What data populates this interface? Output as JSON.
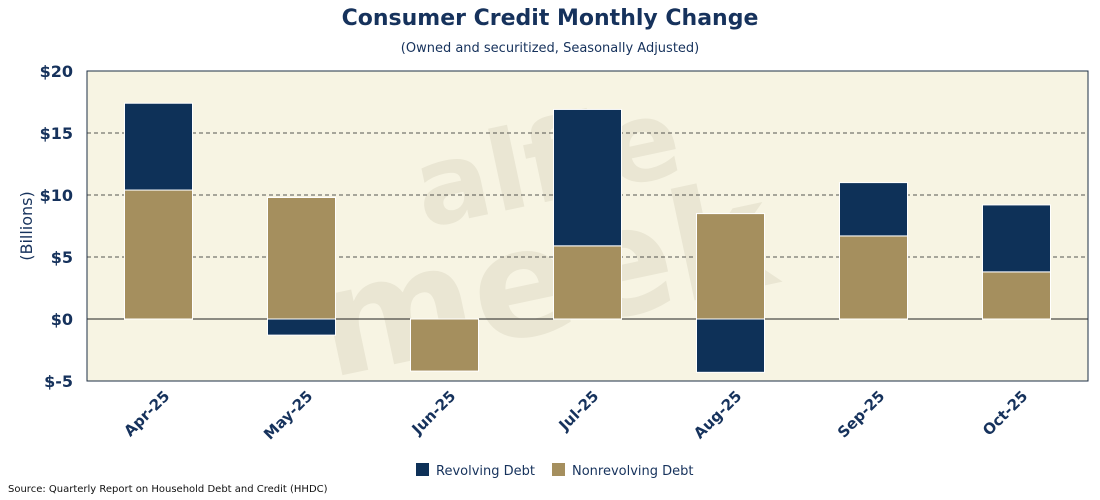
{
  "title": "Consumer Credit Monthly Change",
  "subtitle": "(Owned and securitized, Seasonally Adjusted)",
  "source": "Source: Quarterly Report on Household Debt and Credit (HHDC)",
  "watermark": "alfie meek",
  "colors": {
    "revolving": "#0e3158",
    "nonrevolving": "#a58f5e",
    "plot_bg": "#f7f4e3",
    "text": "#16325c"
  },
  "chart_data": {
    "type": "bar",
    "stacked": true,
    "categories": [
      "Apr-25",
      "May-25",
      "Jun-25",
      "Jul-25",
      "Aug-25",
      "Sep-25",
      "Oct-25"
    ],
    "series": [
      {
        "name": "Revolving Debt",
        "values": [
          7.0,
          -1.3,
          0.0,
          11.0,
          -4.3,
          4.3,
          5.4
        ]
      },
      {
        "name": "Nonrevolving Debt",
        "values": [
          10.4,
          9.8,
          -4.2,
          5.9,
          8.5,
          6.7,
          3.8
        ]
      }
    ],
    "ylabel": "(Billions)",
    "ylim": [
      -5,
      20
    ],
    "yticks": [
      20,
      15,
      10,
      5,
      0,
      -5
    ],
    "ytick_labels": [
      "$20",
      "$15",
      "$10",
      "$5",
      "$0",
      "$-5"
    ],
    "grid": "dashed horizontal",
    "legend": "bottom-center"
  }
}
